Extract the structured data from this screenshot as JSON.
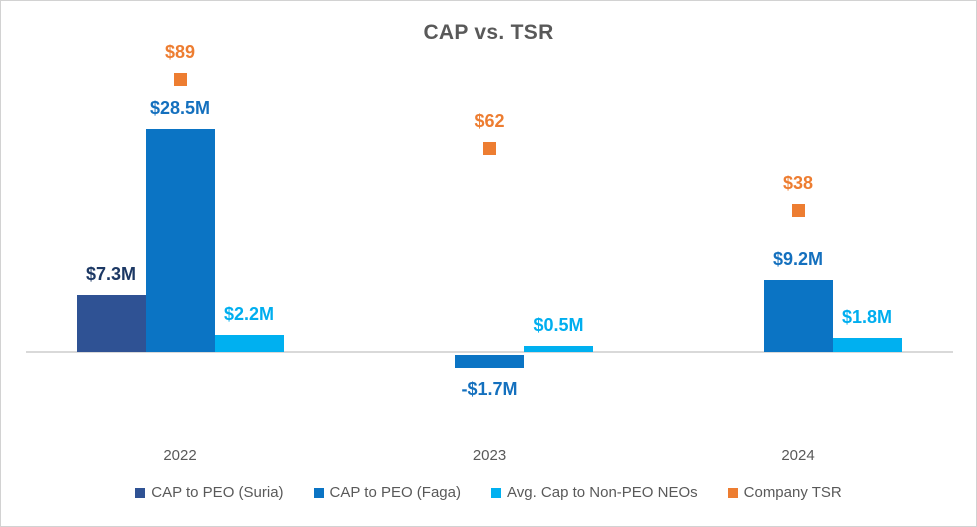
{
  "chart_data": {
    "type": "bar",
    "title": "CAP vs. TSR",
    "categories": [
      "2022",
      "2023",
      "2024"
    ],
    "series": [
      {
        "name": "CAP to PEO (Suria)",
        "type": "bar",
        "color": "#2F5294",
        "label_color": "#1C3864",
        "values": [
          7.3,
          null,
          null
        ],
        "labels": [
          "$7.3M",
          null,
          null
        ]
      },
      {
        "name": "CAP to PEO (Faga)",
        "type": "bar",
        "color": "#0B74C4",
        "label_color": "#1470BE",
        "values": [
          28.5,
          -1.7,
          9.2
        ],
        "labels": [
          "$28.5M",
          "-$1.7M",
          "$9.2M"
        ]
      },
      {
        "name": "Avg. Cap to Non-PEO NEOs",
        "type": "bar",
        "color": "#00B0F0",
        "label_color": "#00AEEF",
        "values": [
          2.2,
          0.5,
          1.8
        ],
        "labels": [
          "$2.2M",
          "$0.5M",
          "$1.8M"
        ]
      },
      {
        "name": "Company TSR",
        "type": "scatter-square",
        "secondary_axis": true,
        "color": "#ED7D31",
        "label_color": "#ED7D31",
        "values": [
          89,
          62,
          38
        ],
        "labels": [
          "$89",
          "$62",
          "$38"
        ]
      }
    ],
    "bar_value_unit": "M",
    "legend_position": "bottom",
    "gridlines": false,
    "data_labels": true,
    "colors": {
      "title_text": "#595959",
      "axis_text": "#595959",
      "axis_line": "#D9D9D9"
    }
  }
}
